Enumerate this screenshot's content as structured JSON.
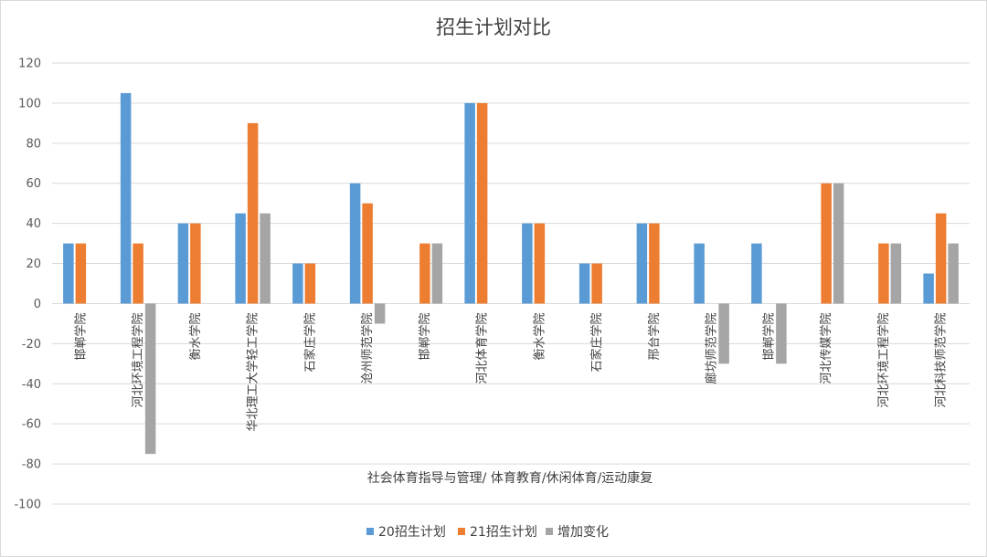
{
  "chart_data": {
    "type": "bar",
    "title": "招生计划对比",
    "group_label": "社会体育指导与管理/ 体育教育/休闲体育/运动康复",
    "categories": [
      "邯郸学院",
      "河北环境工程学院",
      "衡水学院",
      "华北理工大学轻工学院",
      "石家庄学院",
      "沧州师范学院",
      "邯郸学院",
      "河北体育学院",
      "衡水学院",
      "石家庄学院",
      "邢台学院",
      "廊坊师范学院",
      "邯郸学院",
      "河北传媒学院",
      "河北环境工程学院",
      "河北科技师范学院"
    ],
    "series": [
      {
        "name": "20招生计划",
        "color": "#5b9bd5",
        "values": [
          30,
          105,
          40,
          45,
          20,
          60,
          0,
          100,
          40,
          20,
          40,
          30,
          30,
          0,
          0,
          15
        ]
      },
      {
        "name": "21招生计划",
        "color": "#ed7d31",
        "values": [
          30,
          30,
          40,
          90,
          20,
          50,
          30,
          100,
          40,
          20,
          40,
          0,
          0,
          60,
          30,
          45
        ]
      },
      {
        "name": "增加变化",
        "color": "#a5a5a5",
        "values": [
          0,
          -75,
          0,
          45,
          0,
          -10,
          30,
          0,
          0,
          0,
          0,
          -30,
          -30,
          60,
          30,
          30
        ]
      }
    ],
    "ylim": [
      -100,
      120
    ],
    "yticks": [
      -100,
      -80,
      -60,
      -40,
      -20,
      0,
      20,
      40,
      60,
      80,
      100,
      120
    ],
    "grid": true,
    "legend_position": "bottom"
  }
}
